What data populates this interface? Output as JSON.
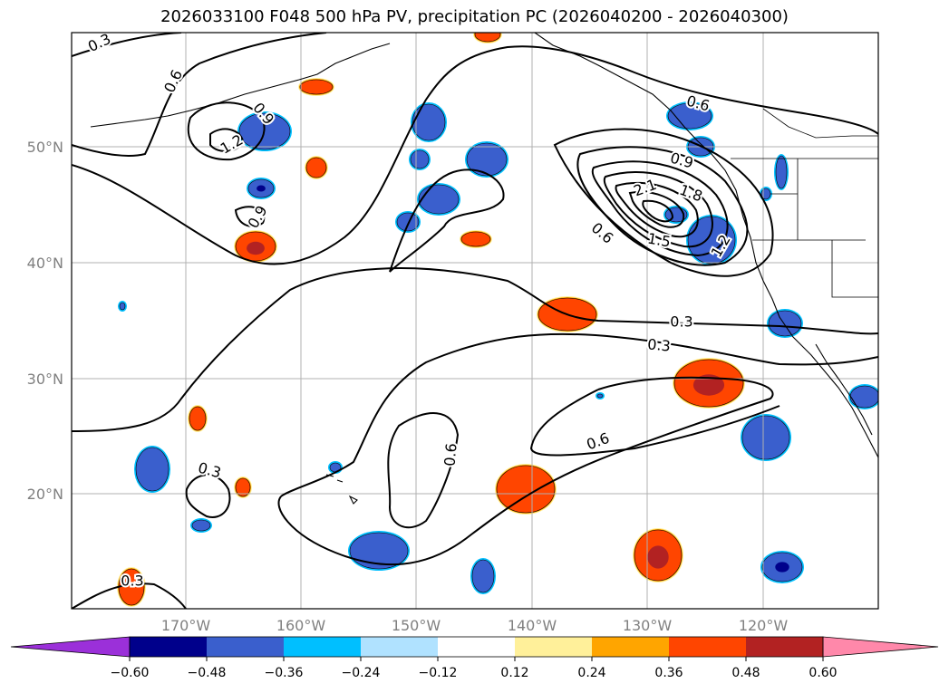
{
  "title": "2026033100 F048 500 hPa PV, precipitation PC (2026040200 - 2026040300)",
  "latitude_labels": [
    "50°N",
    "40°N",
    "30°N",
    "20°N"
  ],
  "longitude_labels": [
    "170°W",
    "160°W",
    "150°W",
    "140°W",
    "130°W",
    "120°W"
  ],
  "contour_labels": [
    "0.3",
    "0.6",
    "0.9",
    "1.2",
    "0.9",
    "0.6",
    "0.9",
    "2.1",
    "1.8",
    "1.5",
    "1.2",
    "0.6",
    "0.3",
    "0.3",
    "0.6",
    "0.6",
    "0.3",
    "0.3"
  ],
  "colorbar": {
    "tick_labels": [
      "−0.60",
      "−0.48",
      "−0.36",
      "−0.24",
      "−0.12",
      "0.12",
      "0.24",
      "0.36",
      "0.48",
      "0.60"
    ],
    "colors": [
      "#9b30d9",
      "#00008b",
      "#3a5fcd",
      "#00bfff",
      "#b0e2ff",
      "#ffffff",
      "#fff09a",
      "#ffa500",
      "#ff4500",
      "#b22222",
      "#ff88aa"
    ]
  },
  "fill_colors": {
    "neg_strong": "#00008b",
    "neg_mid": "#3a5fcd",
    "neg_light": "#00bfff",
    "pos_light": "#fff09a",
    "pos_mid": "#ffa500",
    "pos_strong": "#ff4500",
    "pos_max": "#b22222"
  }
}
